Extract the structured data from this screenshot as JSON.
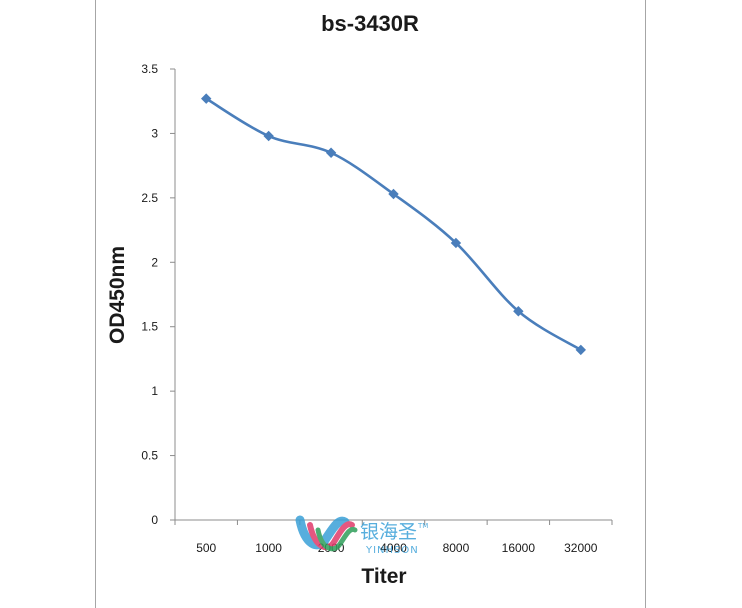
{
  "chart_data": {
    "type": "line",
    "title": "bs-3430R",
    "xlabel": "Titer",
    "ylabel": "OD450nm",
    "categories": [
      "500",
      "1000",
      "2000",
      "4000",
      "8000",
      "16000",
      "32000"
    ],
    "series": [
      {
        "values": [
          3.27,
          2.98,
          2.85,
          2.53,
          2.15,
          1.62,
          1.32
        ]
      }
    ],
    "ylim": [
      0,
      3.5
    ],
    "yticks": [
      "0",
      "0.5",
      "1",
      "1.5",
      "2",
      "2.5",
      "3",
      "3.5"
    ],
    "grid": false,
    "line_color": "#4a7ebb",
    "marker": "diamond"
  },
  "watermark": {
    "cn_text": "银海圣",
    "en_text": "YINHSON",
    "tm": "TM",
    "colors": [
      "#3aa0d8",
      "#e03a6a",
      "#2f9e5a"
    ]
  }
}
